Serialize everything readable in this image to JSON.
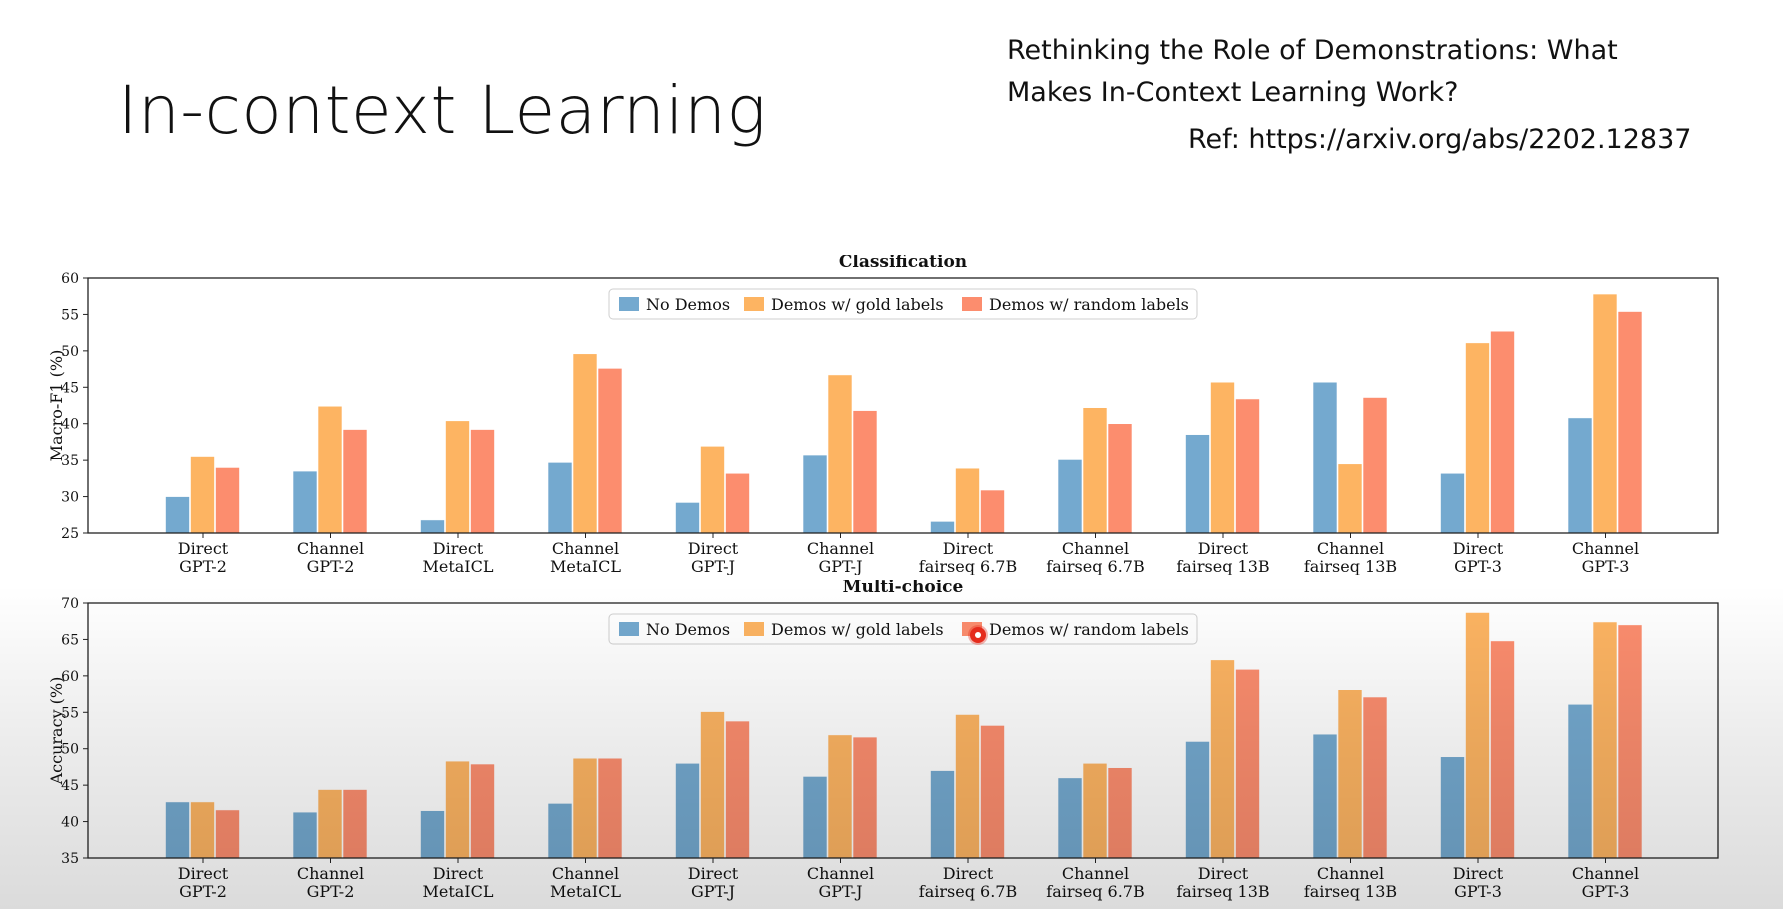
{
  "slide": {
    "title": "In-context Learning",
    "reference_title": "Rethinking the Role of Demonstrations: What Makes In-Context Learning Work?",
    "reference_url": "Ref: https://arxiv.org/abs/2202.12837"
  },
  "colors": {
    "No Demos": "#74a9cf",
    "Demos w/ gold labels": "#fdb462",
    "Demos w/ random labels": "#fc8d6e"
  },
  "chart_data": [
    {
      "type": "bar",
      "title": "Classification",
      "ylabel": "Macro-F1 (%)",
      "xlabel": "",
      "ylim": [
        25,
        60
      ],
      "yticks": [
        25,
        30,
        35,
        40,
        45,
        50,
        55,
        60
      ],
      "grid": false,
      "legend_position": "top-center",
      "categories": [
        [
          "Direct",
          "GPT-2"
        ],
        [
          "Channel",
          "GPT-2"
        ],
        [
          "Direct",
          "MetaICL"
        ],
        [
          "Channel",
          "MetaICL"
        ],
        [
          "Direct",
          "GPT-J"
        ],
        [
          "Channel",
          "GPT-J"
        ],
        [
          "Direct",
          "fairseq 6.7B"
        ],
        [
          "Channel",
          "fairseq 6.7B"
        ],
        [
          "Direct",
          "fairseq 13B"
        ],
        [
          "Channel",
          "fairseq 13B"
        ],
        [
          "Direct",
          "GPT-3"
        ],
        [
          "Channel",
          "GPT-3"
        ]
      ],
      "series": [
        {
          "name": "No Demos",
          "values": [
            30.0,
            33.5,
            26.8,
            34.7,
            29.2,
            35.7,
            26.6,
            35.1,
            38.5,
            45.7,
            33.2,
            40.8
          ]
        },
        {
          "name": "Demos w/ gold labels",
          "values": [
            35.5,
            42.4,
            40.4,
            49.6,
            36.9,
            46.7,
            33.9,
            42.2,
            45.7,
            34.5,
            51.1,
            57.8
          ]
        },
        {
          "name": "Demos w/ random labels",
          "values": [
            34.0,
            39.2,
            39.2,
            47.6,
            33.2,
            41.8,
            30.9,
            40.0,
            43.4,
            43.6,
            52.7,
            55.4
          ]
        }
      ]
    },
    {
      "type": "bar",
      "title": "Multi-choice",
      "ylabel": "Accuracy (%)",
      "xlabel": "",
      "ylim": [
        35,
        70
      ],
      "yticks": [
        35,
        40,
        45,
        50,
        55,
        60,
        65,
        70
      ],
      "grid": false,
      "legend_position": "top-center",
      "categories": [
        [
          "Direct",
          "GPT-2"
        ],
        [
          "Channel",
          "GPT-2"
        ],
        [
          "Direct",
          "MetaICL"
        ],
        [
          "Channel",
          "MetaICL"
        ],
        [
          "Direct",
          "GPT-J"
        ],
        [
          "Channel",
          "GPT-J"
        ],
        [
          "Direct",
          "fairseq 6.7B"
        ],
        [
          "Channel",
          "fairseq 6.7B"
        ],
        [
          "Direct",
          "fairseq 13B"
        ],
        [
          "Channel",
          "fairseq 13B"
        ],
        [
          "Direct",
          "GPT-3"
        ],
        [
          "Channel",
          "GPT-3"
        ]
      ],
      "series": [
        {
          "name": "No Demos",
          "values": [
            42.7,
            41.3,
            41.5,
            42.5,
            48.0,
            46.2,
            47.0,
            46.0,
            51.0,
            52.0,
            48.9,
            56.1
          ]
        },
        {
          "name": "Demos w/ gold labels",
          "values": [
            42.7,
            44.4,
            48.3,
            48.7,
            55.1,
            51.9,
            54.7,
            48.0,
            62.2,
            58.1,
            68.7,
            67.4
          ]
        },
        {
          "name": "Demos w/ random labels",
          "values": [
            41.6,
            44.4,
            47.9,
            48.7,
            53.8,
            51.6,
            53.2,
            47.4,
            60.9,
            57.1,
            64.8,
            67.0
          ]
        }
      ]
    }
  ]
}
